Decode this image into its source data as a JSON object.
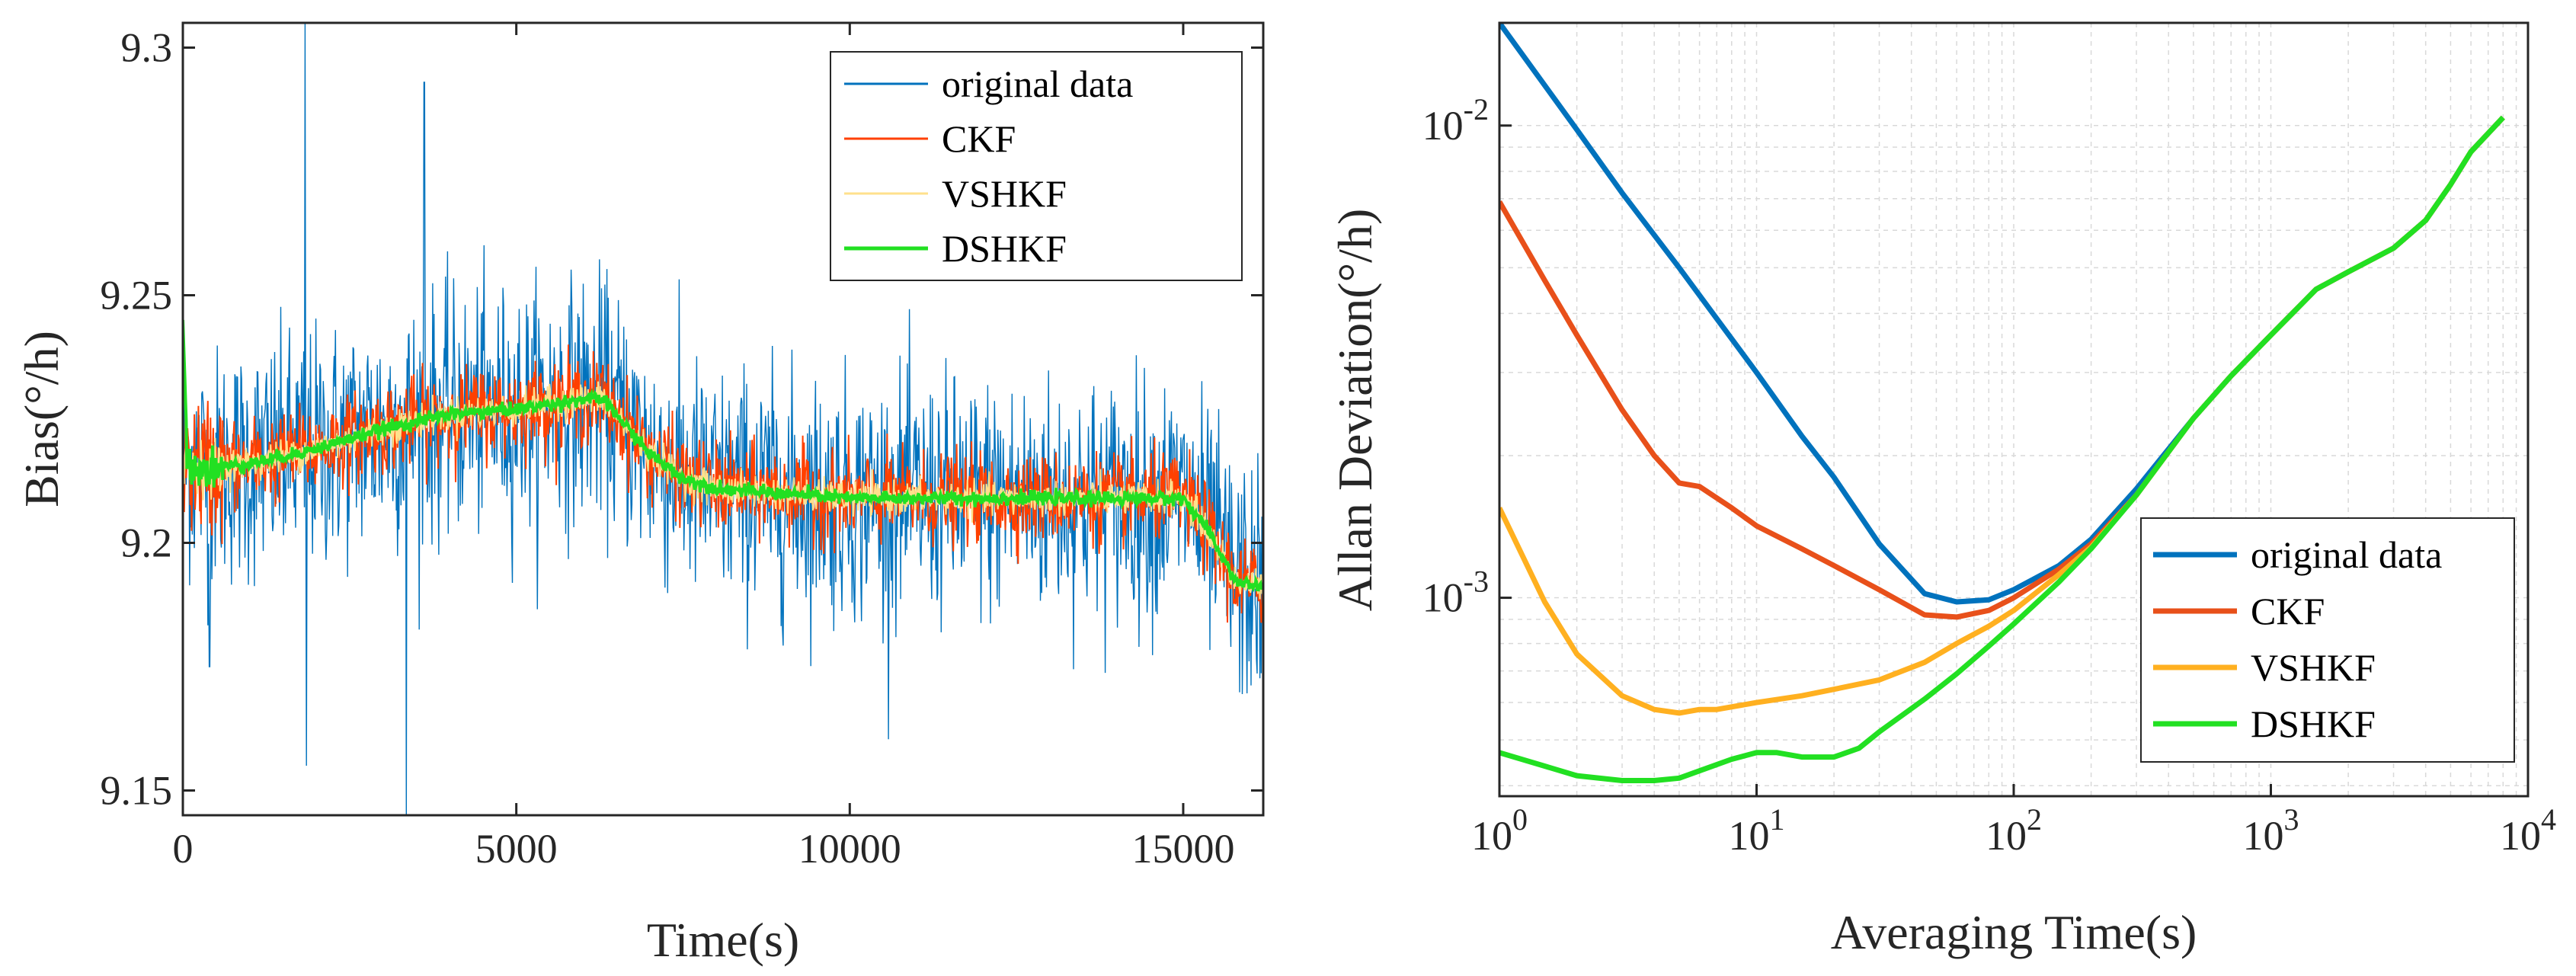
{
  "chart_data": [
    {
      "type": "line",
      "xlabel": "Time(s)",
      "ylabel": "Bias(°/h)",
      "xlim": [
        0,
        16200
      ],
      "ylim": [
        9.145,
        9.305
      ],
      "xticks": [
        0,
        5000,
        10000,
        15000
      ],
      "xtick_labels": [
        "0",
        "5000",
        "10000",
        "15000"
      ],
      "yticks": [
        9.15,
        9.2,
        9.25,
        9.3
      ],
      "ytick_labels": [
        "9.15",
        "9.2",
        "9.25",
        "9.3"
      ],
      "grid": false,
      "legend_position": "top-right",
      "series": [
        {
          "name": "original data",
          "color": "#0072BD",
          "noise": 0.022
        },
        {
          "name": "CKF",
          "color": "#FF4000",
          "noise": 0.008
        },
        {
          "name": "VSHKF",
          "color": "#FFE08C",
          "noise": 0.003
        },
        {
          "name": "DSHKF",
          "color": "#22E022",
          "noise": 0.0012
        }
      ],
      "trend": {
        "t": [
          0,
          300,
          1000,
          2000,
          3000,
          4000,
          5000,
          6000,
          6300,
          7000,
          7500,
          8000,
          10000,
          12000,
          14000,
          15000,
          15300,
          15800,
          16200
        ],
        "bias": [
          9.217,
          9.215,
          9.216,
          9.219,
          9.223,
          9.226,
          9.227,
          9.229,
          9.229,
          9.218,
          9.213,
          9.211,
          9.209,
          9.209,
          9.209,
          9.209,
          9.204,
          9.192,
          9.191
        ]
      },
      "spikes": [
        {
          "t": 1830,
          "value": 9.305
        },
        {
          "t": 1850,
          "value": 9.155
        },
        {
          "t": 3350,
          "value": 9.145
        },
        {
          "t": 3620,
          "value": 9.293
        },
        {
          "t": 400,
          "value": 9.175
        }
      ]
    },
    {
      "type": "line",
      "xscale": "log",
      "yscale": "log",
      "xlabel": "Averaging Time(s)",
      "ylabel": "Allan Deviation(°/h)",
      "xlim": [
        1,
        10000
      ],
      "ylim": [
        0.00038,
        0.0165
      ],
      "xticks": [
        1,
        10,
        100,
        1000,
        10000
      ],
      "xtick_base": "10",
      "xtick_exponents": [
        "0",
        "1",
        "2",
        "3",
        "4"
      ],
      "yticks": [
        0.001,
        0.01
      ],
      "ytick_base": "10",
      "ytick_exponents": [
        "-3",
        "-2"
      ],
      "grid": true,
      "legend_position": "bottom-right",
      "series": [
        {
          "name": "original data",
          "color": "#0072BD",
          "x": [
            1,
            2,
            3,
            5,
            7,
            10,
            15,
            20,
            30,
            45,
            60,
            80,
            100,
            150,
            200,
            300,
            500,
            700,
            1000,
            1500,
            2000,
            3000,
            4000,
            5000,
            6000,
            8000
          ],
          "y": [
            0.0165,
            0.0098,
            0.0072,
            0.005,
            0.0039,
            0.003,
            0.0022,
            0.0018,
            0.0013,
            0.00102,
            0.00098,
            0.00099,
            0.00104,
            0.00117,
            0.00133,
            0.0017,
            0.0024,
            0.00295,
            0.0036,
            0.0045,
            0.0049,
            0.0055,
            0.0063,
            0.0075,
            0.0088,
            0.0104
          ]
        },
        {
          "name": "CKF",
          "color": "#E8501A",
          "x": [
            1,
            1.5,
            2,
            3,
            4,
            5,
            6,
            8,
            10,
            15,
            20,
            30,
            45,
            60,
            80,
            100,
            150,
            200,
            300,
            500,
            700,
            1000,
            1500,
            2000,
            3000,
            4000,
            5000,
            6000,
            8000
          ],
          "y": [
            0.0069,
            0.0047,
            0.0036,
            0.0025,
            0.002,
            0.00175,
            0.00172,
            0.00155,
            0.00142,
            0.00127,
            0.00117,
            0.00104,
            0.00092,
            0.00091,
            0.00094,
            0.001,
            0.00115,
            0.0013,
            0.00165,
            0.0024,
            0.00295,
            0.0036,
            0.0045,
            0.0049,
            0.0055,
            0.0063,
            0.0075,
            0.0088,
            0.0104
          ]
        },
        {
          "name": "VSHKF",
          "color": "#FFB020",
          "x": [
            1,
            1.5,
            2,
            3,
            4,
            5,
            6,
            7,
            10,
            15,
            20,
            30,
            45,
            60,
            80,
            100,
            150,
            200,
            300,
            500,
            700,
            1000,
            1500,
            2000,
            3000,
            4000,
            5000,
            6000,
            8000
          ],
          "y": [
            0.00155,
            0.00098,
            0.00076,
            0.00062,
            0.00058,
            0.00057,
            0.00058,
            0.00058,
            0.0006,
            0.00062,
            0.00064,
            0.00067,
            0.00073,
            0.0008,
            0.00087,
            0.00094,
            0.00112,
            0.00128,
            0.00165,
            0.0024,
            0.00295,
            0.0036,
            0.0045,
            0.0049,
            0.0055,
            0.0063,
            0.0075,
            0.0088,
            0.0104
          ]
        },
        {
          "name": "DSHKF",
          "color": "#22E022",
          "x": [
            1,
            1.5,
            2,
            3,
            4,
            5,
            6,
            8,
            10,
            12,
            15,
            20,
            25,
            30,
            45,
            60,
            80,
            100,
            150,
            200,
            300,
            500,
            700,
            1000,
            1500,
            2000,
            3000,
            4000,
            5000,
            6000,
            8000
          ],
          "y": [
            0.00047,
            0.00044,
            0.00042,
            0.00041,
            0.00041,
            0.000415,
            0.00043,
            0.000455,
            0.00047,
            0.00047,
            0.00046,
            0.00046,
            0.00048,
            0.00052,
            0.00061,
            0.00069,
            0.00079,
            0.00088,
            0.00108,
            0.00127,
            0.00165,
            0.0024,
            0.00295,
            0.0036,
            0.0045,
            0.0049,
            0.0055,
            0.0063,
            0.0075,
            0.0088,
            0.0104
          ]
        }
      ]
    }
  ]
}
